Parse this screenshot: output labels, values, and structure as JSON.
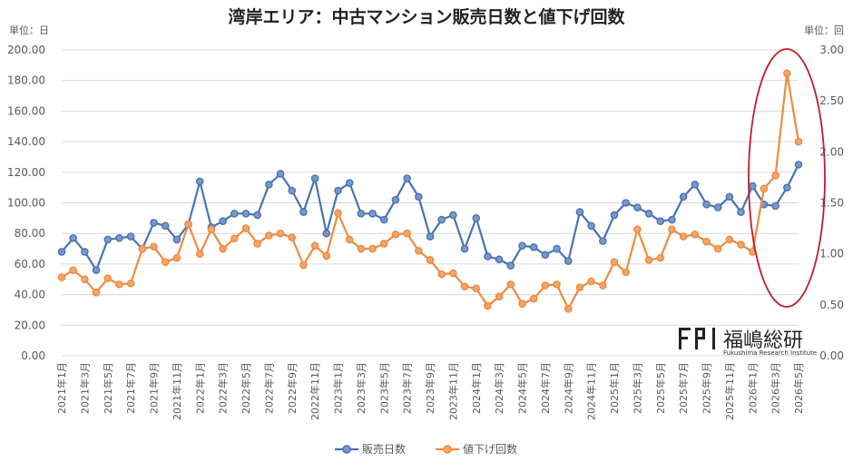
{
  "chart_data": {
    "type": "line",
    "title": "湾岸エリア：中古マンション販売日数と値下げ回数",
    "y_left_unit": "単位：日",
    "y_right_unit": "単位：回",
    "ylim_left": [
      0,
      200
    ],
    "ylim_right": [
      0,
      3
    ],
    "y_left_ticks": [
      "0.00",
      "20.00",
      "40.00",
      "60.00",
      "80.00",
      "100.00",
      "120.00",
      "140.00",
      "160.00",
      "180.00",
      "200.00"
    ],
    "y_right_ticks": [
      "0.00",
      "0.50",
      "1.00",
      "1.50",
      "2.00",
      "2.50",
      "3.00"
    ],
    "grid": true,
    "legend_position": "bottom",
    "x_labels_shown": [
      "2021年1月",
      "2021年3月",
      "2021年5月",
      "2021年7月",
      "2021年9月",
      "2021年11月",
      "2022年1月",
      "2022年3月",
      "2022年5月",
      "2022年7月",
      "2022年9月",
      "2022年11月",
      "2023年1月",
      "2023年3月",
      "2023年5月",
      "2023年7月",
      "2023年9月",
      "2023年11月",
      "2024年1月",
      "2024年3月",
      "2024年5月",
      "2024年7月",
      "2024年9月",
      "2024年11月",
      "2025年1月",
      "2025年3月",
      "2025年5月",
      "2025年7月",
      "2025年9月",
      "2025年11月",
      "2026年1月",
      "2026年3月",
      "2026年5月"
    ],
    "series": [
      {
        "name": "販売日数",
        "axis": "left",
        "color": "#4a72b0",
        "values": [
          68,
          77,
          68,
          56,
          76,
          77,
          78,
          70,
          87,
          85,
          76,
          86,
          114,
          84,
          88,
          93,
          93,
          92,
          112,
          119,
          108,
          94,
          116,
          80,
          108,
          113,
          93,
          93,
          89,
          102,
          116,
          104,
          78,
          89,
          92,
          70,
          90,
          65,
          63,
          59,
          72,
          71,
          66,
          70,
          62,
          94,
          85,
          75,
          92,
          100,
          97,
          93,
          88,
          89,
          104,
          112,
          99,
          97,
          104,
          94,
          111,
          99,
          98,
          110,
          125
        ]
      },
      {
        "name": "値下げ回数",
        "axis": "right",
        "color": "#ed8a3f",
        "values": [
          0.77,
          0.84,
          0.75,
          0.62,
          0.76,
          0.7,
          0.71,
          1.05,
          1.07,
          0.92,
          0.96,
          1.29,
          1.0,
          1.24,
          1.05,
          1.15,
          1.25,
          1.1,
          1.18,
          1.2,
          1.16,
          0.89,
          1.08,
          0.98,
          1.4,
          1.14,
          1.05,
          1.05,
          1.1,
          1.19,
          1.2,
          1.03,
          0.94,
          0.8,
          0.81,
          0.68,
          0.66,
          0.49,
          0.58,
          0.7,
          0.51,
          0.56,
          0.69,
          0.7,
          0.46,
          0.67,
          0.73,
          0.69,
          0.92,
          0.82,
          1.24,
          0.94,
          0.96,
          1.24,
          1.17,
          1.19,
          1.12,
          1.05,
          1.14,
          1.09,
          1.02,
          1.64,
          1.77,
          2.77,
          2.1
        ]
      }
    ],
    "annotation": "ellipse highlighting 2026 values"
  },
  "logo": {
    "mark": "FRI",
    "name": "福嶋総研",
    "subtitle": "Fukushima Research Institute"
  }
}
